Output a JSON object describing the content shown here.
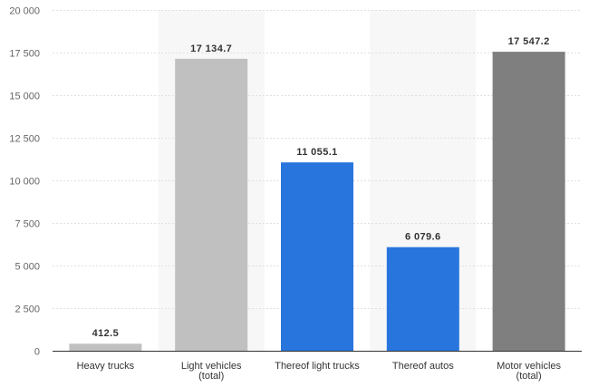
{
  "chart_data": {
    "type": "bar",
    "categories": [
      [
        "Heavy trucks"
      ],
      [
        "Light vehicles",
        "(total)"
      ],
      [
        "Thereof light trucks"
      ],
      [
        "Thereof autos"
      ],
      [
        "Motor vehicles",
        "(total)"
      ]
    ],
    "values": [
      412.5,
      17134.7,
      11055.1,
      6079.6,
      17547.2
    ],
    "value_labels": [
      "412.5",
      "17 134.7",
      "11 055.1",
      "6 079.6",
      "17 547.2"
    ],
    "bar_colors": [
      "#c0c0c0",
      "#c0c0c0",
      "#2876dd",
      "#2876dd",
      "#7f7f7f"
    ],
    "band_shading": [
      false,
      true,
      false,
      true,
      false
    ],
    "band_color": "#f7f7f7",
    "grid_color": "#e0e0e0",
    "yticks": [
      0,
      2500,
      5000,
      7500,
      10000,
      12500,
      15000,
      17500,
      20000
    ],
    "ytick_labels": [
      "0",
      "2 500",
      "5 000",
      "7 500",
      "10 000",
      "12 500",
      "15 000",
      "17 500",
      "20 000"
    ],
    "ylim": [
      0,
      20000
    ],
    "grid": true,
    "title": "",
    "xlabel": "",
    "ylabel": ""
  }
}
